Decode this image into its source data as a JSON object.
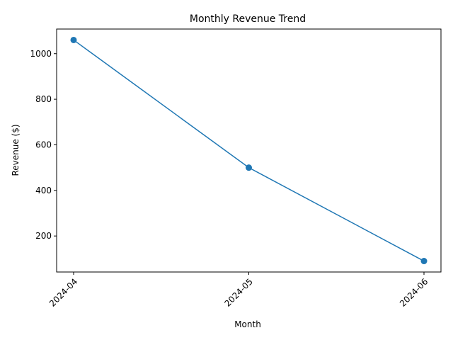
{
  "chart_data": {
    "type": "line",
    "title": "Monthly Revenue Trend",
    "xlabel": "Month",
    "ylabel": "Revenue ($)",
    "categories": [
      "2024-04",
      "2024-05",
      "2024-06"
    ],
    "series": [
      {
        "values": [
          1060,
          500,
          90
        ],
        "color": "#1f77b4",
        "marker": "circle"
      }
    ],
    "ylim": [
      42,
      1108
    ],
    "yticks": [
      200,
      400,
      600,
      800,
      1000
    ],
    "grid": false,
    "legend": "none"
  }
}
